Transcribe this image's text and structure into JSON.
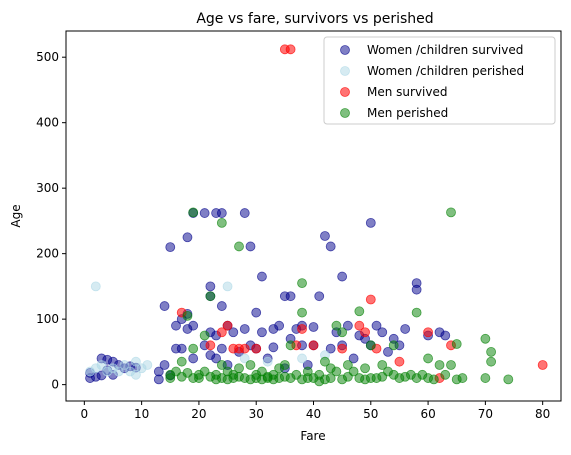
{
  "chart_data": {
    "type": "scatter",
    "title": "Age vs fare, survivors vs perished",
    "xlabel": "Fare",
    "ylabel": "Age",
    "xlim": [
      -3.2,
      83.2
    ],
    "ylim": [
      -25,
      540
    ],
    "xticks": [
      0,
      10,
      20,
      30,
      40,
      50,
      60,
      70,
      80
    ],
    "yticks": [
      0,
      100,
      200,
      300,
      400,
      500
    ],
    "grid": false,
    "legend_position": "top-right",
    "series": [
      {
        "name": "Women /children survived",
        "color": "#00008b",
        "alpha": 0.5,
        "points": [
          [
            1,
            18
          ],
          [
            1,
            10
          ],
          [
            2,
            12
          ],
          [
            3,
            40
          ],
          [
            3,
            14
          ],
          [
            4,
            22
          ],
          [
            4,
            38
          ],
          [
            5,
            35
          ],
          [
            5,
            15
          ],
          [
            6,
            30
          ],
          [
            7,
            25
          ],
          [
            8,
            28
          ],
          [
            9,
            26
          ],
          [
            13,
            8
          ],
          [
            13,
            20
          ],
          [
            14,
            120
          ],
          [
            14,
            30
          ],
          [
            15,
            210
          ],
          [
            15,
            14
          ],
          [
            16,
            90
          ],
          [
            16,
            55
          ],
          [
            17,
            100
          ],
          [
            17,
            55
          ],
          [
            18,
            225
          ],
          [
            18,
            108
          ],
          [
            18,
            85
          ],
          [
            19,
            262
          ],
          [
            19,
            90
          ],
          [
            19,
            40
          ],
          [
            21,
            262
          ],
          [
            21,
            60
          ],
          [
            22,
            150
          ],
          [
            22,
            80
          ],
          [
            22,
            135
          ],
          [
            22,
            45
          ],
          [
            23,
            262
          ],
          [
            23,
            75
          ],
          [
            23,
            40
          ],
          [
            24,
            262
          ],
          [
            24,
            120
          ],
          [
            24,
            55
          ],
          [
            25,
            90
          ],
          [
            25,
            30
          ],
          [
            26,
            80
          ],
          [
            27,
            50
          ],
          [
            28,
            262
          ],
          [
            28,
            85
          ],
          [
            29,
            211
          ],
          [
            29,
            60
          ],
          [
            30,
            55
          ],
          [
            30,
            110
          ],
          [
            31,
            165
          ],
          [
            31,
            80
          ],
          [
            32,
            40
          ],
          [
            33,
            85
          ],
          [
            33,
            57
          ],
          [
            34,
            90
          ],
          [
            35,
            135
          ],
          [
            35,
            25
          ],
          [
            36,
            135
          ],
          [
            36,
            70
          ],
          [
            37,
            85
          ],
          [
            38,
            60
          ],
          [
            38,
            90
          ],
          [
            39,
            30
          ],
          [
            40,
            88
          ],
          [
            40,
            60
          ],
          [
            41,
            135
          ],
          [
            42,
            227
          ],
          [
            43,
            211
          ],
          [
            43,
            55
          ],
          [
            44,
            80
          ],
          [
            45,
            165
          ],
          [
            45,
            60
          ],
          [
            46,
            90
          ],
          [
            47,
            40
          ],
          [
            48,
            75
          ],
          [
            49,
            70
          ],
          [
            50,
            247
          ],
          [
            50,
            60
          ],
          [
            51,
            90
          ],
          [
            52,
            80
          ],
          [
            53,
            50
          ],
          [
            54,
            70
          ],
          [
            55,
            60
          ],
          [
            56,
            85
          ],
          [
            58,
            155
          ],
          [
            58,
            145
          ],
          [
            60,
            75
          ],
          [
            62,
            80
          ],
          [
            63,
            75
          ]
        ]
      },
      {
        "name": "Women /children perished",
        "color": "#add8e6",
        "alpha": 0.5,
        "points": [
          [
            1,
            20
          ],
          [
            2,
            150
          ],
          [
            2,
            25
          ],
          [
            3,
            30
          ],
          [
            4,
            20
          ],
          [
            5,
            25
          ],
          [
            6,
            20
          ],
          [
            7,
            30
          ],
          [
            8,
            20
          ],
          [
            9,
            15
          ],
          [
            9,
            35
          ],
          [
            10,
            25
          ],
          [
            11,
            30
          ],
          [
            25,
            150
          ],
          [
            28,
            40
          ],
          [
            32,
            35
          ],
          [
            38,
            40
          ],
          [
            42,
            45
          ]
        ]
      },
      {
        "name": "Men survived",
        "color": "#ff0000",
        "alpha": 0.55,
        "points": [
          [
            17,
            110
          ],
          [
            22,
            60
          ],
          [
            24,
            80
          ],
          [
            25,
            90
          ],
          [
            26,
            55
          ],
          [
            27,
            55
          ],
          [
            28,
            55
          ],
          [
            30,
            55
          ],
          [
            35,
            512
          ],
          [
            36,
            512
          ],
          [
            37,
            60
          ],
          [
            38,
            85
          ],
          [
            40,
            60
          ],
          [
            45,
            55
          ],
          [
            48,
            90
          ],
          [
            49,
            80
          ],
          [
            50,
            130
          ],
          [
            51,
            55
          ],
          [
            55,
            35
          ],
          [
            60,
            80
          ],
          [
            62,
            10
          ],
          [
            64,
            60
          ],
          [
            80,
            30
          ]
        ]
      },
      {
        "name": "Men perished",
        "color": "#008000",
        "alpha": 0.5,
        "points": [
          [
            15,
            15
          ],
          [
            15,
            10
          ],
          [
            16,
            20
          ],
          [
            17,
            35
          ],
          [
            17,
            12
          ],
          [
            18,
            105
          ],
          [
            18,
            18
          ],
          [
            19,
            263
          ],
          [
            19,
            10
          ],
          [
            19,
            55
          ],
          [
            20,
            15
          ],
          [
            20,
            10
          ],
          [
            21,
            75
          ],
          [
            21,
            20
          ],
          [
            22,
            135
          ],
          [
            22,
            12
          ],
          [
            23,
            15
          ],
          [
            23,
            8
          ],
          [
            24,
            247
          ],
          [
            24,
            30
          ],
          [
            24,
            10
          ],
          [
            25,
            20
          ],
          [
            25,
            8
          ],
          [
            26,
            15
          ],
          [
            26,
            10
          ],
          [
            27,
            211
          ],
          [
            27,
            25
          ],
          [
            27,
            12
          ],
          [
            28,
            10
          ],
          [
            29,
            30
          ],
          [
            29,
            8
          ],
          [
            30,
            15
          ],
          [
            30,
            10
          ],
          [
            31,
            20
          ],
          [
            31,
            8
          ],
          [
            32,
            12
          ],
          [
            32,
            10
          ],
          [
            33,
            15
          ],
          [
            33,
            8
          ],
          [
            34,
            25
          ],
          [
            34,
            10
          ],
          [
            35,
            30
          ],
          [
            35,
            12
          ],
          [
            36,
            60
          ],
          [
            36,
            10
          ],
          [
            37,
            15
          ],
          [
            38,
            155
          ],
          [
            38,
            8
          ],
          [
            38,
            110
          ],
          [
            39,
            20
          ],
          [
            39,
            10
          ],
          [
            40,
            10
          ],
          [
            41,
            15
          ],
          [
            41,
            5
          ],
          [
            42,
            35
          ],
          [
            42,
            8
          ],
          [
            43,
            25
          ],
          [
            43,
            10
          ],
          [
            44,
            90
          ],
          [
            44,
            20
          ],
          [
            45,
            80
          ],
          [
            45,
            8
          ],
          [
            46,
            30
          ],
          [
            46,
            12
          ],
          [
            47,
            20
          ],
          [
            48,
            112
          ],
          [
            48,
            10
          ],
          [
            49,
            25
          ],
          [
            49,
            8
          ],
          [
            50,
            60
          ],
          [
            50,
            10
          ],
          [
            51,
            10
          ],
          [
            52,
            30
          ],
          [
            52,
            12
          ],
          [
            53,
            20
          ],
          [
            54,
            15
          ],
          [
            54,
            60
          ],
          [
            55,
            10
          ],
          [
            56,
            12
          ],
          [
            57,
            15
          ],
          [
            58,
            110
          ],
          [
            58,
            10
          ],
          [
            59,
            15
          ],
          [
            60,
            40
          ],
          [
            60,
            10
          ],
          [
            61,
            8
          ],
          [
            62,
            30
          ],
          [
            63,
            15
          ],
          [
            64,
            263
          ],
          [
            64,
            30
          ],
          [
            65,
            62
          ],
          [
            65,
            8
          ],
          [
            66,
            10
          ],
          [
            70,
            70
          ],
          [
            70,
            10
          ],
          [
            71,
            50
          ],
          [
            71,
            35
          ],
          [
            74,
            8
          ]
        ]
      }
    ]
  }
}
